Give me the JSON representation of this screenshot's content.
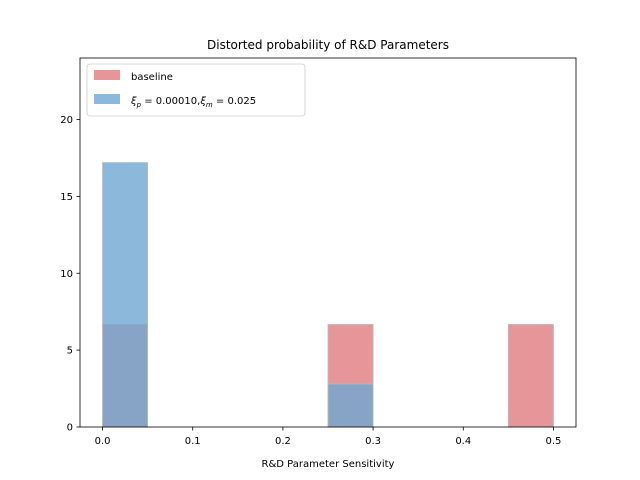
{
  "chart_data": {
    "type": "bar",
    "title": "Distorted probability of R&D Parameters",
    "xlabel": "R&D Parameter Sensitivity",
    "ylabel": "",
    "xlim": [
      -0.025,
      0.525
    ],
    "ylim": [
      0,
      24
    ],
    "bin_width": 0.05,
    "xticks": [
      0.0,
      0.1,
      0.2,
      0.3,
      0.4,
      0.5
    ],
    "xtick_labels": [
      "0.0",
      "0.1",
      "0.2",
      "0.3",
      "0.4",
      "0.5"
    ],
    "yticks": [
      0,
      5,
      10,
      15,
      20
    ],
    "ytick_labels": [
      "0",
      "5",
      "10",
      "15",
      "20"
    ],
    "grid": false,
    "legend_position": "top-left",
    "series": [
      {
        "name": "baseline",
        "color": "#e07b7e",
        "bins": [
          {
            "x": 0.0,
            "value": 6.67
          },
          {
            "x": 0.25,
            "value": 6.67
          },
          {
            "x": 0.45,
            "value": 6.67
          }
        ]
      },
      {
        "name_parts": [
          "ξ",
          "p",
          " = 0.00010,",
          "ξ",
          "m",
          " = 0.025"
        ],
        "color": "#6fa8d2",
        "bins": [
          {
            "x": 0.0,
            "value": 17.2
          },
          {
            "x": 0.25,
            "value": 2.8
          }
        ]
      }
    ]
  }
}
